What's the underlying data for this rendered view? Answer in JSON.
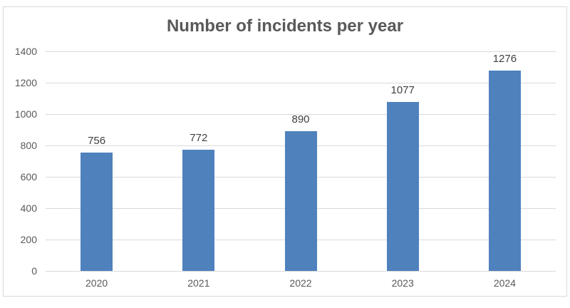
{
  "chart_data": {
    "type": "bar",
    "title": "Number of incidents per year",
    "xlabel": "",
    "ylabel": "",
    "categories": [
      "2020",
      "2021",
      "2022",
      "2023",
      "2024"
    ],
    "values": [
      756,
      772,
      890,
      1077,
      1276
    ],
    "data_labels": [
      "756",
      "772",
      "890",
      "1077",
      "1276"
    ],
    "ylim": [
      0,
      1400
    ],
    "yticks": [
      "0",
      "200",
      "400",
      "600",
      "800",
      "1000",
      "1200",
      "1400"
    ],
    "grid": true,
    "legend": "none",
    "bar_color": "#4f81bd"
  }
}
